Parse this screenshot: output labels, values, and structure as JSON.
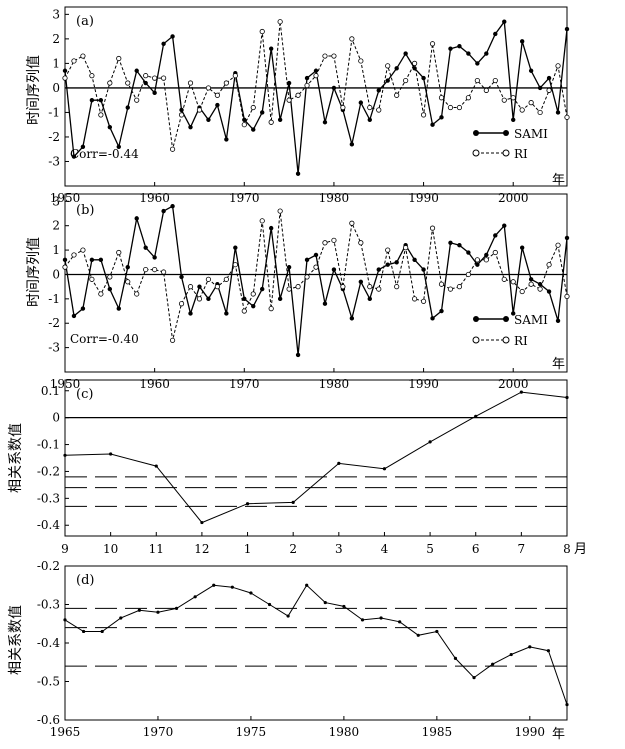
{
  "chart_data": [
    {
      "type": "line",
      "panel_label": "(a)",
      "ylabel": "时间序列值",
      "xunit": "年",
      "corr_text": "Corr=-0.44",
      "xlim": [
        1950,
        2006
      ],
      "ylim": [
        -4,
        3.3
      ],
      "xticks": [
        1950,
        1960,
        1970,
        1980,
        1990,
        2000
      ],
      "xticklabels": [
        "1950",
        "1960",
        "1970",
        "1980",
        "1990",
        "2000"
      ],
      "yticks": [
        -3,
        -2,
        -1,
        0,
        1,
        2,
        3
      ],
      "yticklabels": [
        "-3",
        "-2",
        "-1",
        "0",
        "1",
        "2",
        "3"
      ],
      "legend": {
        "position": "bottom-right"
      },
      "x": [
        1950,
        1951,
        1952,
        1953,
        1954,
        1955,
        1956,
        1957,
        1958,
        1959,
        1960,
        1961,
        1962,
        1963,
        1964,
        1965,
        1966,
        1967,
        1968,
        1969,
        1970,
        1971,
        1972,
        1973,
        1974,
        1975,
        1976,
        1977,
        1978,
        1979,
        1980,
        1981,
        1982,
        1983,
        1984,
        1985,
        1986,
        1987,
        1988,
        1989,
        1990,
        1991,
        1992,
        1993,
        1994,
        1995,
        1996,
        1997,
        1998,
        1999,
        2000,
        2001,
        2002,
        2003,
        2004,
        2005,
        2006
      ],
      "series": [
        {
          "name": "SAMI",
          "style": "solid-filled",
          "values": [
            0.7,
            -2.8,
            -2.4,
            -0.5,
            -0.5,
            -1.6,
            -2.4,
            -0.8,
            0.7,
            0.2,
            -0.2,
            1.8,
            2.1,
            -0.9,
            -1.6,
            -0.8,
            -1.3,
            -0.7,
            -2.1,
            0.6,
            -1.3,
            -1.7,
            -1.0,
            1.6,
            -1.3,
            0.2,
            -3.5,
            0.4,
            0.7,
            -1.4,
            0.0,
            -0.9,
            -2.3,
            -0.6,
            -1.3,
            -0.1,
            0.3,
            0.8,
            1.4,
            0.8,
            0.4,
            -1.5,
            -1.2,
            1.6,
            1.7,
            1.4,
            1.0,
            1.4,
            2.2,
            2.7,
            -1.3,
            1.9,
            0.7,
            0.0,
            0.4,
            -1.0,
            2.4
          ]
        },
        {
          "name": "RI",
          "style": "dashed-open",
          "values": [
            0.4,
            1.1,
            1.3,
            0.5,
            -1.1,
            0.2,
            1.2,
            0.2,
            -0.5,
            0.5,
            0.4,
            0.4,
            -2.5,
            -1.1,
            0.2,
            -0.9,
            0.0,
            -0.3,
            0.2,
            0.5,
            -1.5,
            -0.8,
            2.3,
            -1.4,
            2.7,
            -0.5,
            -0.3,
            0.1,
            0.5,
            1.3,
            1.3,
            -0.8,
            2.0,
            1.1,
            -0.8,
            -0.9,
            0.9,
            -0.3,
            0.3,
            1.0,
            -1.1,
            1.8,
            -0.4,
            -0.8,
            -0.8,
            -0.4,
            0.3,
            -0.1,
            0.3,
            -0.5,
            -0.4,
            -0.9,
            -0.6,
            -1.0,
            -0.1,
            0.9,
            -1.2
          ]
        }
      ]
    },
    {
      "type": "line",
      "panel_label": "(b)",
      "ylabel": "时间序列值",
      "xunit": "年",
      "corr_text": "Corr=-0.40",
      "xlim": [
        1950,
        2006
      ],
      "ylim": [
        -4,
        3.3
      ],
      "xticks": [
        1950,
        1960,
        1970,
        1980,
        1990,
        2000
      ],
      "xticklabels": [
        "1950",
        "1960",
        "1970",
        "1980",
        "1990",
        "2000"
      ],
      "yticks": [
        -3,
        -2,
        -1,
        0,
        1,
        2,
        3
      ],
      "yticklabels": [
        "-3",
        "-2",
        "-1",
        "0",
        "1",
        "2",
        "3"
      ],
      "legend": {
        "position": "bottom-right"
      },
      "x": [
        1950,
        1951,
        1952,
        1953,
        1954,
        1955,
        1956,
        1957,
        1958,
        1959,
        1960,
        1961,
        1962,
        1963,
        1964,
        1965,
        1966,
        1967,
        1968,
        1969,
        1970,
        1971,
        1972,
        1973,
        1974,
        1975,
        1976,
        1977,
        1978,
        1979,
        1980,
        1981,
        1982,
        1983,
        1984,
        1985,
        1986,
        1987,
        1988,
        1989,
        1990,
        1991,
        1992,
        1993,
        1994,
        1995,
        1996,
        1997,
        1998,
        1999,
        2000,
        2001,
        2002,
        2003,
        2004,
        2005,
        2006
      ],
      "series": [
        {
          "name": "SAMI",
          "style": "solid-filled",
          "values": [
            0.6,
            -1.7,
            -1.4,
            0.6,
            0.6,
            -0.6,
            -1.4,
            0.3,
            2.3,
            1.1,
            0.7,
            2.6,
            2.8,
            -0.1,
            -1.6,
            -0.5,
            -1.0,
            -0.4,
            -1.6,
            1.1,
            -1.0,
            -1.3,
            -0.6,
            1.9,
            -1.0,
            0.3,
            -3.3,
            0.6,
            0.8,
            -1.2,
            0.2,
            -0.6,
            -1.8,
            -0.3,
            -1.0,
            0.2,
            0.4,
            0.5,
            1.2,
            0.6,
            0.2,
            -1.8,
            -1.5,
            1.3,
            1.2,
            0.9,
            0.4,
            0.8,
            1.6,
            2.0,
            -1.6,
            1.1,
            -0.2,
            -0.4,
            -0.7,
            -1.9,
            1.5
          ]
        },
        {
          "name": "RI",
          "style": "dashed-open",
          "values": [
            0.3,
            0.8,
            1.0,
            -0.2,
            -0.8,
            -0.1,
            0.9,
            -0.3,
            -0.8,
            0.2,
            0.2,
            0.1,
            -2.7,
            -1.2,
            -0.5,
            -1.0,
            -0.2,
            -0.5,
            -0.2,
            0.4,
            -1.5,
            -0.8,
            2.2,
            -1.4,
            2.6,
            -0.6,
            -0.5,
            -0.1,
            0.3,
            1.3,
            1.4,
            -0.5,
            2.1,
            1.3,
            -0.5,
            -0.6,
            1.0,
            -0.5,
            1.1,
            -1.0,
            -1.1,
            1.9,
            -0.4,
            -0.6,
            -0.5,
            0.0,
            0.6,
            0.6,
            0.9,
            -0.2,
            -0.3,
            -0.7,
            -0.4,
            -0.6,
            0.4,
            1.2,
            -0.9
          ]
        }
      ]
    },
    {
      "type": "line",
      "panel_label": "(c)",
      "ylabel": "相关系数值",
      "xunit": "月",
      "xlim": [
        0,
        11
      ],
      "ylim": [
        -0.44,
        0.14
      ],
      "categories": [
        "9",
        "10",
        "11",
        "12",
        "1",
        "2",
        "3",
        "4",
        "5",
        "6",
        "7",
        "8"
      ],
      "values": [
        -0.14,
        -0.135,
        -0.18,
        -0.39,
        -0.32,
        -0.315,
        -0.17,
        -0.19,
        -0.09,
        0.005,
        0.095,
        0.075
      ],
      "yticks": [
        -0.4,
        -0.3,
        -0.2,
        -0.1,
        0,
        0.1
      ],
      "yticklabels": [
        "-0.4",
        "-0.3",
        "-0.2",
        "-0.1",
        "0",
        "0.1"
      ],
      "zero_line": true,
      "reference_lines": [
        -0.22,
        -0.26,
        -0.33
      ]
    },
    {
      "type": "line",
      "panel_label": "(d)",
      "ylabel": "相关系数值",
      "xunit": "年",
      "xlim": [
        1965,
        1992
      ],
      "ylim": [
        -0.6,
        -0.2
      ],
      "x": [
        1965,
        1966,
        1967,
        1968,
        1969,
        1970,
        1971,
        1972,
        1973,
        1974,
        1975,
        1976,
        1977,
        1978,
        1979,
        1980,
        1981,
        1982,
        1983,
        1984,
        1985,
        1986,
        1987,
        1988,
        1989,
        1990,
        1991,
        1992
      ],
      "values": [
        -0.34,
        -0.37,
        -0.37,
        -0.335,
        -0.315,
        -0.32,
        -0.31,
        -0.28,
        -0.25,
        -0.255,
        -0.27,
        -0.3,
        -0.33,
        -0.25,
        -0.295,
        -0.305,
        -0.34,
        -0.335,
        -0.345,
        -0.38,
        -0.37,
        -0.44,
        -0.49,
        -0.455,
        -0.43,
        -0.41,
        -0.42,
        -0.56
      ],
      "xticks": [
        1965,
        1970,
        1975,
        1980,
        1985,
        1990
      ],
      "xticklabels": [
        "1965",
        "1970",
        "1975",
        "1980",
        "1985",
        "1990"
      ],
      "yticks": [
        -0.6,
        -0.5,
        -0.4,
        -0.3,
        -0.2
      ],
      "yticklabels": [
        "-0.6",
        "-0.5",
        "-0.4",
        "-0.3",
        "-0.2"
      ],
      "reference_lines": [
        -0.31,
        -0.36,
        -0.46
      ]
    }
  ]
}
